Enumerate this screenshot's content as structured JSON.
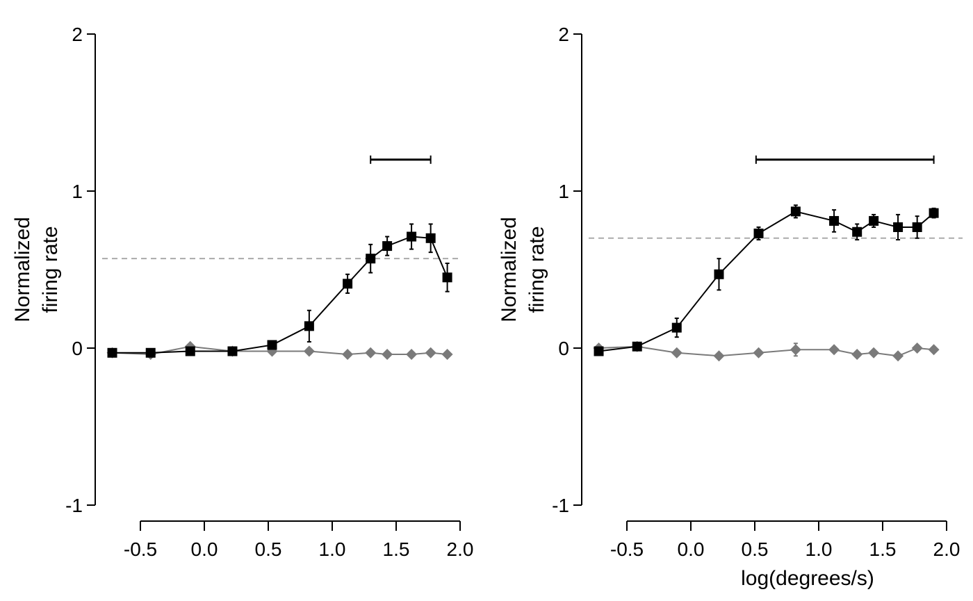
{
  "chart_data": [
    {
      "type": "line",
      "xlabel": "",
      "ylabel": [
        "Normalized",
        "firing rate"
      ],
      "xlim": [
        -0.5,
        2.0
      ],
      "ylim": [
        -1,
        2
      ],
      "xticks": [
        "-0.5",
        "0.0",
        "0.5",
        "1.0",
        "1.5",
        "2.0"
      ],
      "yticks": [
        "-1",
        "0",
        "1",
        "2"
      ],
      "threshold": 0.57,
      "significance_bar": [
        1.3,
        1.77
      ],
      "series": [
        {
          "marker": "square",
          "color": "#000000",
          "x": [
            -0.72,
            -0.42,
            -0.11,
            0.22,
            0.53,
            0.82,
            1.12,
            1.3,
            1.43,
            1.62,
            1.77,
            1.9
          ],
          "y": [
            -0.03,
            -0.03,
            -0.02,
            -0.02,
            0.02,
            0.14,
            0.41,
            0.57,
            0.65,
            0.71,
            0.7,
            0.45
          ],
          "err": [
            0,
            0,
            0,
            0,
            0,
            0.1,
            0.06,
            0.09,
            0.06,
            0.08,
            0.09,
            0.09
          ]
        },
        {
          "marker": "diamond",
          "color": "#7a7a7a",
          "x": [
            -0.72,
            -0.42,
            -0.11,
            0.22,
            0.53,
            0.82,
            1.12,
            1.3,
            1.43,
            1.62,
            1.77,
            1.9
          ],
          "y": [
            -0.03,
            -0.04,
            0.01,
            -0.02,
            -0.02,
            -0.02,
            -0.04,
            -0.03,
            -0.04,
            -0.04,
            -0.03,
            -0.04
          ],
          "err": [
            0,
            0,
            0,
            0,
            0,
            0,
            0,
            0,
            0,
            0,
            0,
            0
          ]
        }
      ]
    },
    {
      "type": "line",
      "xlabel": "log(degrees/s)",
      "ylabel": [
        "Normalized",
        "firing rate"
      ],
      "xlim": [
        -0.5,
        2.0
      ],
      "ylim": [
        -1,
        2
      ],
      "xticks": [
        "-0.5",
        "0.0",
        "0.5",
        "1.0",
        "1.5",
        "2.0"
      ],
      "yticks": [
        "-1",
        "0",
        "1",
        "2"
      ],
      "threshold": 0.7,
      "significance_bar": [
        0.51,
        1.9
      ],
      "series": [
        {
          "marker": "square",
          "color": "#000000",
          "x": [
            -0.72,
            -0.42,
            -0.11,
            0.22,
            0.53,
            0.82,
            1.12,
            1.3,
            1.43,
            1.62,
            1.77,
            1.9
          ],
          "y": [
            -0.02,
            0.01,
            0.13,
            0.47,
            0.73,
            0.87,
            0.81,
            0.74,
            0.81,
            0.77,
            0.77,
            0.86
          ],
          "err": [
            0,
            0,
            0.06,
            0.1,
            0.04,
            0.04,
            0.07,
            0.05,
            0.04,
            0.08,
            0.07,
            0.03
          ]
        },
        {
          "marker": "diamond",
          "color": "#7a7a7a",
          "x": [
            -0.72,
            -0.42,
            -0.11,
            0.22,
            0.53,
            0.82,
            1.12,
            1.3,
            1.43,
            1.62,
            1.77,
            1.9
          ],
          "y": [
            0.0,
            0.01,
            -0.03,
            -0.05,
            -0.03,
            -0.01,
            -0.01,
            -0.04,
            -0.03,
            -0.05,
            0.0,
            -0.01
          ],
          "err": [
            0,
            0,
            0,
            0,
            0,
            0.04,
            0,
            0,
            0,
            0,
            0,
            0
          ]
        }
      ]
    }
  ]
}
